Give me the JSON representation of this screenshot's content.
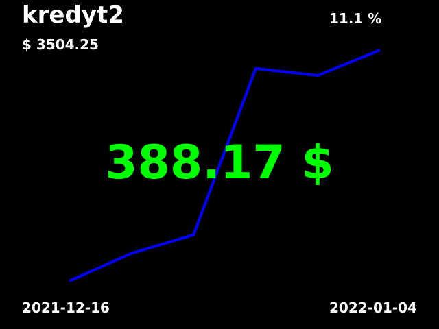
{
  "title": "kredyt2",
  "percent": "11.1 %",
  "balance": "$ 3504.25",
  "main_value": "388.17 $",
  "dates": {
    "start": "2021-12-16",
    "end": "2022-01-04"
  },
  "colors": {
    "background": "#000000",
    "text": "#ffffff",
    "line": "#0000ff",
    "main_value": "#00ff00"
  },
  "chart_data": {
    "type": "line",
    "series": [
      {
        "values": [
          0,
          0.12,
          0.2,
          0.92,
          0.89,
          1.0
        ]
      }
    ],
    "ylim": [
      0,
      1
    ],
    "grid": false
  }
}
